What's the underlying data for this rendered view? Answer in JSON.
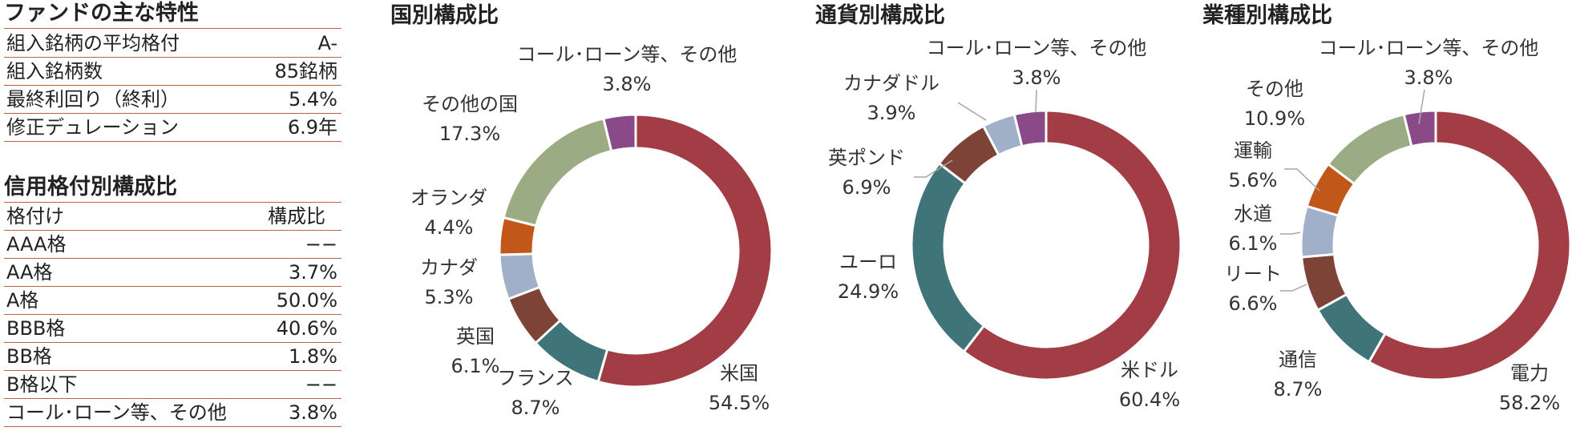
{
  "fund_characteristics": {
    "title": "ファンドの主な特性",
    "rows": [
      {
        "label": "組入銘柄の平均格付",
        "value": "A-"
      },
      {
        "label": "組入銘柄数",
        "value": "85銘柄"
      },
      {
        "label": "最終利回り（終利）",
        "value": "5.4%"
      },
      {
        "label": "修正デュレーション",
        "value": "6.9年"
      }
    ]
  },
  "rating_table": {
    "title": "信用格付別構成比",
    "header": {
      "label": "格付け",
      "value": "構成比"
    },
    "rows": [
      {
        "label": "AAA格",
        "value": "−−"
      },
      {
        "label": "AA格",
        "value": "3.7%"
      },
      {
        "label": "A格",
        "value": "50.0%"
      },
      {
        "label": "BBB格",
        "value": "40.6%"
      },
      {
        "label": "BB格",
        "value": "1.8%"
      },
      {
        "label": "B格以下",
        "value": "−−"
      },
      {
        "label": "コール･ローン等、その他",
        "value": "3.8%"
      }
    ]
  },
  "colors": {
    "red": "#a33d45",
    "teal": "#3f7478",
    "brown": "#7d4337",
    "blue": "#9fb0c8",
    "orange": "#c2571a",
    "green": "#9bac85",
    "purple": "#8a4a87",
    "rule": "#c0643a"
  },
  "chart_data": [
    {
      "type": "pie",
      "title": "国別構成比",
      "slices": [
        {
          "label": "米国",
          "value": 54.5,
          "value_label": "54.5%",
          "color": "#a33d45"
        },
        {
          "label": "フランス",
          "value": 8.7,
          "value_label": "8.7%",
          "color": "#3f7478"
        },
        {
          "label": "英国",
          "value": 6.1,
          "value_label": "6.1%",
          "color": "#7d4337"
        },
        {
          "label": "カナダ",
          "value": 5.3,
          "value_label": "5.3%",
          "color": "#9fb0c8"
        },
        {
          "label": "オランダ",
          "value": 4.4,
          "value_label": "4.4%",
          "color": "#c2571a"
        },
        {
          "label": "その他の国",
          "value": 17.3,
          "value_label": "17.3%",
          "color": "#9bac85"
        },
        {
          "label": "コール･ローン等、その他",
          "value": 3.8,
          "value_label": "3.8%",
          "color": "#8a4a87"
        }
      ]
    },
    {
      "type": "pie",
      "title": "通貨別構成比",
      "slices": [
        {
          "label": "米ドル",
          "value": 60.4,
          "value_label": "60.4%",
          "color": "#a33d45"
        },
        {
          "label": "ユーロ",
          "value": 24.9,
          "value_label": "24.9%",
          "color": "#3f7478"
        },
        {
          "label": "英ポンド",
          "value": 6.9,
          "value_label": "6.9%",
          "color": "#7d4337"
        },
        {
          "label": "カナダドル",
          "value": 3.9,
          "value_label": "3.9%",
          "color": "#9fb0c8"
        },
        {
          "label": "コール･ローン等、その他",
          "value": 3.8,
          "value_label": "3.8%",
          "color": "#8a4a87"
        }
      ]
    },
    {
      "type": "pie",
      "title": "業種別構成比",
      "slices": [
        {
          "label": "電力",
          "value": 58.2,
          "value_label": "58.2%",
          "color": "#a33d45"
        },
        {
          "label": "通信",
          "value": 8.7,
          "value_label": "8.7%",
          "color": "#3f7478"
        },
        {
          "label": "リート",
          "value": 6.6,
          "value_label": "6.6%",
          "color": "#7d4337"
        },
        {
          "label": "水道",
          "value": 6.1,
          "value_label": "6.1%",
          "color": "#9fb0c8"
        },
        {
          "label": "運輸",
          "value": 5.6,
          "value_label": "5.6%",
          "color": "#c2571a"
        },
        {
          "label": "その他",
          "value": 10.9,
          "value_label": "10.9%",
          "color": "#9bac85"
        },
        {
          "label": "コール･ローン等、その他",
          "value": 3.8,
          "value_label": "3.8%",
          "color": "#8a4a87"
        }
      ]
    }
  ]
}
